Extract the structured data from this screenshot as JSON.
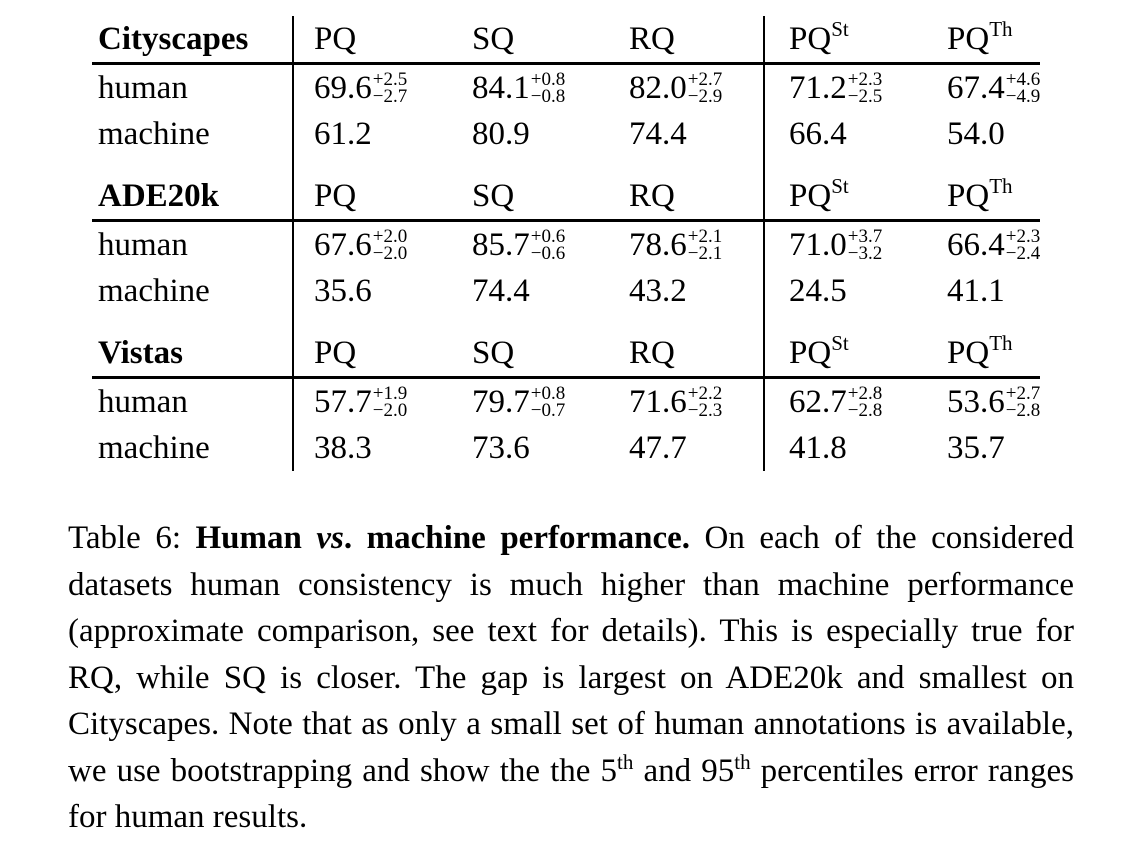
{
  "table": {
    "sections": [
      {
        "dataset": "Cityscapes",
        "metrics": [
          {
            "base": "PQ",
            "sup": ""
          },
          {
            "base": "SQ",
            "sup": ""
          },
          {
            "base": "RQ",
            "sup": ""
          },
          {
            "base": "PQ",
            "sup": "St"
          },
          {
            "base": "PQ",
            "sup": "Th"
          }
        ],
        "rows": [
          {
            "label": "human",
            "cells": [
              {
                "v": "69.6",
                "plus": "+2.5",
                "minus": "−2.7"
              },
              {
                "v": "84.1",
                "plus": "+0.8",
                "minus": "−0.8"
              },
              {
                "v": "82.0",
                "plus": "+2.7",
                "minus": "−2.9"
              },
              {
                "v": "71.2",
                "plus": "+2.3",
                "minus": "−2.5"
              },
              {
                "v": "67.4",
                "plus": "+4.6",
                "minus": "−4.9"
              }
            ]
          },
          {
            "label": "machine",
            "cells": [
              {
                "v": "61.2"
              },
              {
                "v": "80.9"
              },
              {
                "v": "74.4"
              },
              {
                "v": "66.4"
              },
              {
                "v": "54.0"
              }
            ]
          }
        ]
      },
      {
        "dataset": "ADE20k",
        "metrics": [
          {
            "base": "PQ",
            "sup": ""
          },
          {
            "base": "SQ",
            "sup": ""
          },
          {
            "base": "RQ",
            "sup": ""
          },
          {
            "base": "PQ",
            "sup": "St"
          },
          {
            "base": "PQ",
            "sup": "Th"
          }
        ],
        "rows": [
          {
            "label": "human",
            "cells": [
              {
                "v": "67.6",
                "plus": "+2.0",
                "minus": "−2.0"
              },
              {
                "v": "85.7",
                "plus": "+0.6",
                "minus": "−0.6"
              },
              {
                "v": "78.6",
                "plus": "+2.1",
                "minus": "−2.1"
              },
              {
                "v": "71.0",
                "plus": "+3.7",
                "minus": "−3.2"
              },
              {
                "v": "66.4",
                "plus": "+2.3",
                "minus": "−2.4"
              }
            ]
          },
          {
            "label": "machine",
            "cells": [
              {
                "v": "35.6"
              },
              {
                "v": "74.4"
              },
              {
                "v": "43.2"
              },
              {
                "v": "24.5"
              },
              {
                "v": "41.1"
              }
            ]
          }
        ]
      },
      {
        "dataset": "Vistas",
        "metrics": [
          {
            "base": "PQ",
            "sup": ""
          },
          {
            "base": "SQ",
            "sup": ""
          },
          {
            "base": "RQ",
            "sup": ""
          },
          {
            "base": "PQ",
            "sup": "St"
          },
          {
            "base": "PQ",
            "sup": "Th"
          }
        ],
        "rows": [
          {
            "label": "human",
            "cells": [
              {
                "v": "57.7",
                "plus": "+1.9",
                "minus": "−2.0"
              },
              {
                "v": "79.7",
                "plus": "+0.8",
                "minus": "−0.7"
              },
              {
                "v": "71.6",
                "plus": "+2.2",
                "minus": "−2.3"
              },
              {
                "v": "62.7",
                "plus": "+2.8",
                "minus": "−2.8"
              },
              {
                "v": "53.6",
                "plus": "+2.7",
                "minus": "−2.8"
              }
            ]
          },
          {
            "label": "machine",
            "cells": [
              {
                "v": "38.3"
              },
              {
                "v": "73.6"
              },
              {
                "v": "47.7"
              },
              {
                "v": "41.8"
              },
              {
                "v": "35.7"
              }
            ]
          }
        ]
      }
    ]
  },
  "caption": {
    "label": "Table 6:",
    "title_a": "Human",
    "title_vs": "vs",
    "title_b": ". machine performance.",
    "body": "On each of the considered datasets human consistency is much higher than machine performance (approximate comparison, see text for details). This is especially true for RQ, while SQ is closer. The gap is largest on ADE20k and smallest on Cityscapes. Note that as only a small set of human annotations is available, we use bootstrapping and show the the 5",
    "sup1": "th",
    "mid": "and 95",
    "sup2": "th",
    "end": "percentiles error ranges for human results."
  }
}
